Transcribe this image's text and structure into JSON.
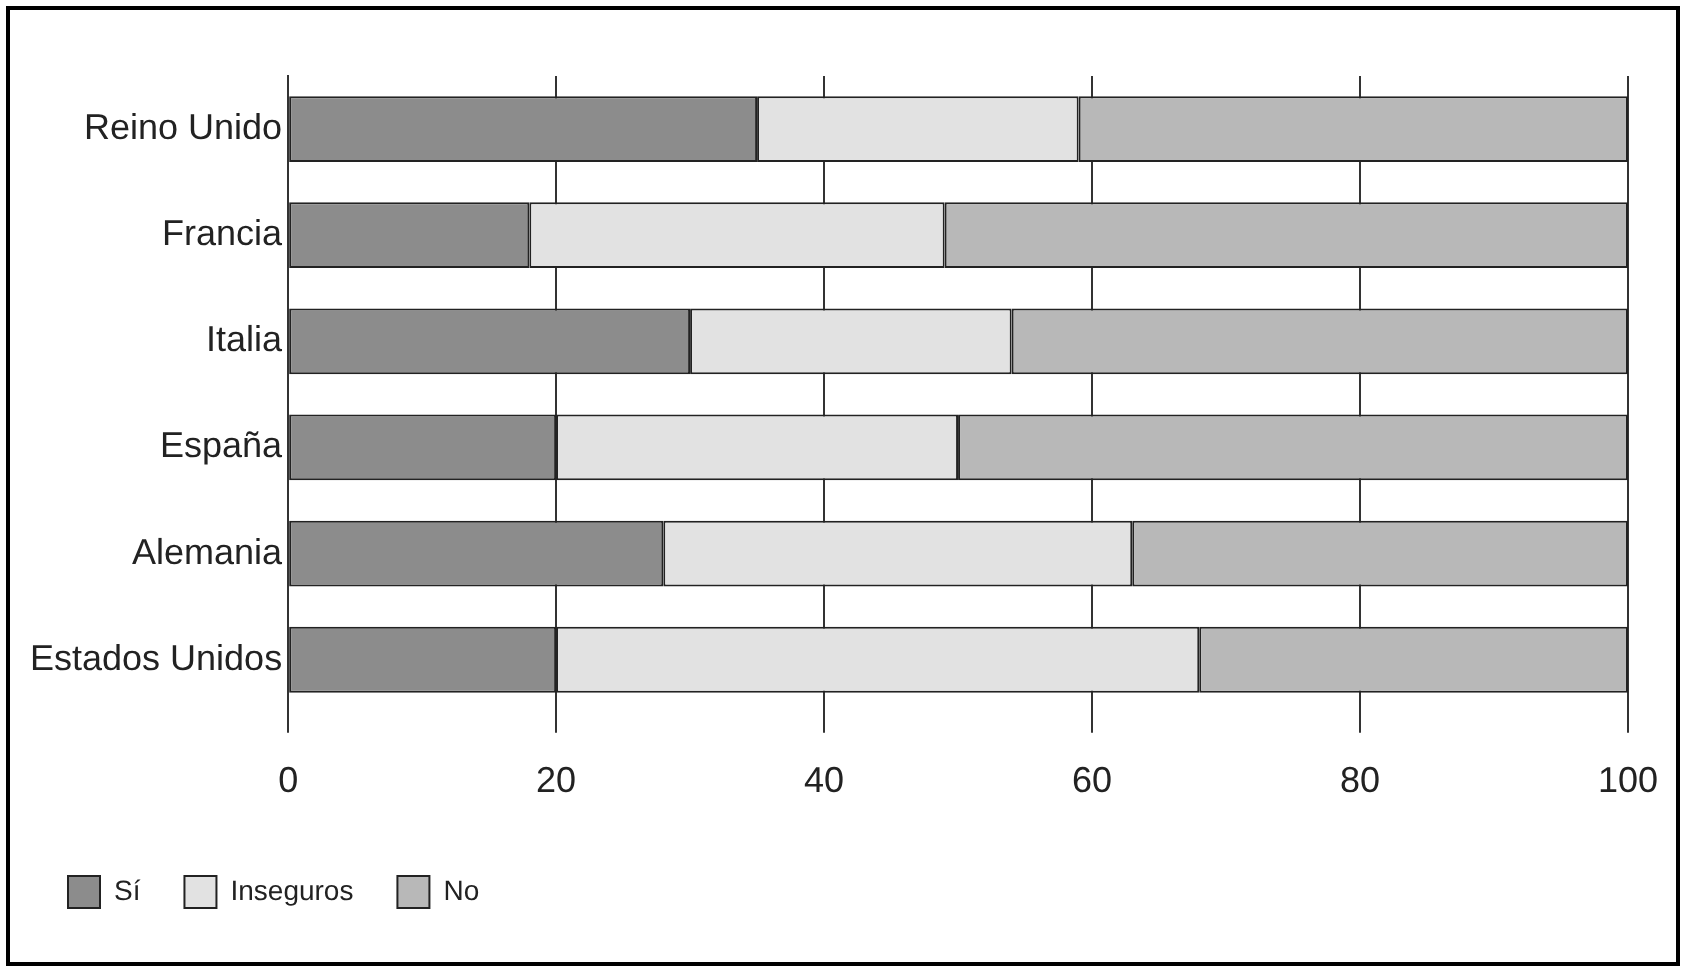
{
  "chart_data": {
    "type": "bar",
    "orientation": "horizontal",
    "stacked": true,
    "categories": [
      "Reino Unido",
      "Francia",
      "Italia",
      "España",
      "Alemania",
      "Estados Unidos"
    ],
    "series": [
      {
        "name": "Sí",
        "color": "#8c8c8c",
        "values": [
          35,
          18,
          30,
          20,
          28,
          20
        ]
      },
      {
        "name": "Inseguros",
        "color": "#e2e2e2",
        "values": [
          24,
          31,
          24,
          30,
          35,
          48
        ]
      },
      {
        "name": "No",
        "color": "#b8b8b8",
        "values": [
          41,
          51,
          46,
          50,
          37,
          32
        ]
      }
    ],
    "xlim": [
      0,
      100
    ],
    "xticks": [
      0,
      20,
      40,
      60,
      80,
      100
    ],
    "grid": "x",
    "legend": "bottom left"
  }
}
